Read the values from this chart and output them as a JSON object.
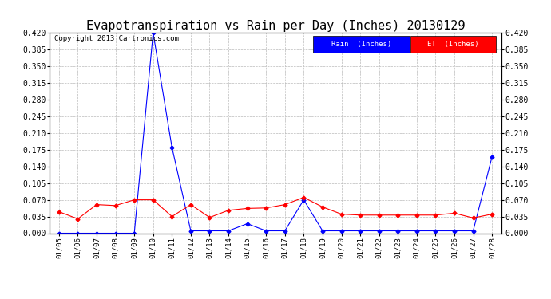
{
  "title": "Evapotranspiration vs Rain per Day (Inches) 20130129",
  "copyright": "Copyright 2013 Cartronics.com",
  "x_labels": [
    "01/05",
    "01/06",
    "01/07",
    "01/08",
    "01/09",
    "01/10",
    "01/11",
    "01/12",
    "01/13",
    "01/14",
    "01/15",
    "01/16",
    "01/17",
    "01/18",
    "01/19",
    "01/20",
    "01/21",
    "01/22",
    "01/23",
    "01/24",
    "01/25",
    "01/26",
    "01/27",
    "01/28"
  ],
  "rain_values": [
    0.0,
    0.0,
    0.0,
    0.0,
    0.0,
    0.42,
    0.18,
    0.005,
    0.005,
    0.005,
    0.02,
    0.005,
    0.005,
    0.07,
    0.005,
    0.005,
    0.005,
    0.005,
    0.005,
    0.005,
    0.005,
    0.005,
    0.005,
    0.16
  ],
  "et_values": [
    0.045,
    0.03,
    0.06,
    0.058,
    0.07,
    0.07,
    0.035,
    0.06,
    0.033,
    0.048,
    0.052,
    0.053,
    0.06,
    0.075,
    0.055,
    0.04,
    0.038,
    0.038,
    0.038,
    0.038,
    0.038,
    0.042,
    0.032,
    0.04
  ],
  "rain_color": "#0000ff",
  "et_color": "#ff0000",
  "ylim": [
    0.0,
    0.42
  ],
  "yticks": [
    0.0,
    0.035,
    0.07,
    0.105,
    0.14,
    0.175,
    0.21,
    0.245,
    0.28,
    0.315,
    0.35,
    0.385,
    0.42
  ],
  "background_color": "#ffffff",
  "grid_color": "#bbbbbb",
  "title_fontsize": 11,
  "legend_rain_label": "Rain  (Inches)",
  "legend_et_label": "ET  (Inches)"
}
